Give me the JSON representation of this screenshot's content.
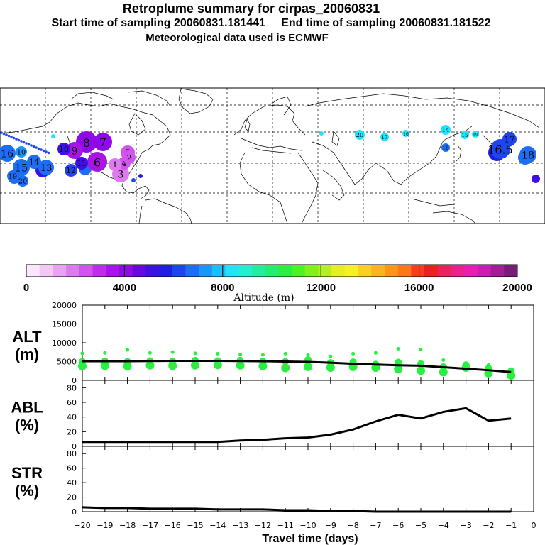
{
  "title": {
    "main": "Retroplume summary for cirpas_20060831",
    "line2": "Start time of sampling 20060831.181441     End time of sampling 20060831.181522",
    "line3": "Meteorological data used is ECMWF"
  },
  "colorbar": {
    "label": "Altitude (m)",
    "ticks": [
      "0",
      "4000",
      "8000",
      "12000",
      "16000",
      "20000"
    ],
    "colors": [
      "#fbe6fb",
      "#f3c8f6",
      "#e9a3f3",
      "#dd7cef",
      "#cf55ec",
      "#bd2ee9",
      "#a814e6",
      "#8f0ae6",
      "#6a06e6",
      "#3d10e8",
      "#1e1ee8",
      "#1e46f0",
      "#1e6ef5",
      "#1e96f8",
      "#1ebefa",
      "#1ee6fa",
      "#1ef0d2",
      "#1ef0a0",
      "#1ef070",
      "#28f040",
      "#50f028",
      "#80f01e",
      "#b4f01e",
      "#e6f01e",
      "#faf01e",
      "#fad21e",
      "#fab41e",
      "#fa961e",
      "#fa781e",
      "#fa3c1e",
      "#f01e1e",
      "#f01e5a",
      "#f01e8c",
      "#e61eb4",
      "#c81eb4",
      "#a01e96",
      "#781e78"
    ]
  },
  "map": {
    "labels": [
      {
        "text": "8",
        "color": "#8f0ae6"
      },
      {
        "text": "7",
        "color": "#8f0ae6"
      },
      {
        "text": "9",
        "color": "#a814e6"
      },
      {
        "text": "6",
        "color": "#a814e6"
      },
      {
        "text": "5",
        "color": "#cf55ec"
      },
      {
        "text": "3",
        "color": "#dd7cef"
      },
      {
        "text": "4",
        "color": "#cf55ec"
      },
      {
        "text": "1",
        "color": "#dd7cef"
      },
      {
        "text": "2",
        "color": "#cf55ec"
      },
      {
        "text": "11",
        "color": "#3d10e8"
      },
      {
        "text": "12",
        "color": "#1e46f0"
      },
      {
        "text": "10",
        "color": "#3d10e8"
      },
      {
        "text": "13",
        "color": "#1e6ef5"
      },
      {
        "text": "14",
        "color": "#1e6ef5"
      },
      {
        "text": "15",
        "color": "#1e6ef5"
      },
      {
        "text": "16",
        "color": "#1e6ef5"
      },
      {
        "text": "18",
        "color": "#1e6ef5"
      },
      {
        "text": "10",
        "color": "#1e96f8"
      },
      {
        "text": "19",
        "color": "#1e6ef5"
      },
      {
        "text": "20",
        "color": "#1e6ef5"
      },
      {
        "text": "20",
        "color": "#1ee6fa"
      },
      {
        "text": "17",
        "color": "#1ee6fa"
      },
      {
        "text": "16",
        "color": "#1ee6fa"
      },
      {
        "text": "14",
        "color": "#1ee6fa"
      },
      {
        "text": "15",
        "color": "#1ee6fa"
      },
      {
        "text": "18",
        "color": "#1e6ef5"
      },
      {
        "text": "16.5",
        "color": "#1e46f0"
      },
      {
        "text": "17",
        "color": "#1e46f0"
      },
      {
        "text": "18",
        "color": "#1e6ef5"
      },
      {
        "text": "19",
        "color": "#1ee6fa"
      }
    ]
  },
  "chart_data": [
    {
      "type": "scatter",
      "panel": "ALT",
      "ylabel": "ALT\n(m)",
      "ylabel_line1": "ALT",
      "ylabel_line2": "(m)",
      "ylim": [
        0,
        20000
      ],
      "yticks": [
        "0",
        "5000",
        "10000",
        "15000",
        "20000"
      ],
      "xlim": [
        -20,
        0
      ],
      "x": [
        -20,
        -19,
        -18,
        -17,
        -16,
        -15,
        -14,
        -13,
        -12,
        -11,
        -10,
        -9,
        -8,
        -7,
        -6,
        -5,
        -4,
        -3,
        -2,
        -1
      ],
      "mean_altitude": [
        5100,
        5100,
        5100,
        5150,
        5200,
        5200,
        5200,
        5150,
        5100,
        5000,
        4900,
        4700,
        4400,
        4200,
        4000,
        3900,
        3500,
        3100,
        2700,
        2200
      ],
      "dots_altitude": [
        [
          7200,
          5000,
          3800
        ],
        [
          7300,
          5100,
          3900
        ],
        [
          8100,
          5000,
          3800
        ],
        [
          7300,
          5200,
          4000
        ],
        [
          7500,
          5100,
          3900
        ],
        [
          7200,
          5300,
          4000
        ],
        [
          7100,
          5200,
          4100
        ],
        [
          6900,
          5300,
          4000
        ],
        [
          6800,
          5100,
          3800
        ],
        [
          7100,
          5000,
          3300
        ],
        [
          6800,
          5500,
          3600
        ],
        [
          6400,
          4700,
          3400
        ],
        [
          7100,
          4900,
          3600
        ],
        [
          7300,
          4300,
          3400
        ],
        [
          8400,
          4800,
          3000
        ],
        [
          8200,
          4400,
          2600
        ],
        [
          5400,
          3600,
          2200
        ],
        [
          4600,
          4100,
          3400
        ],
        [
          4100,
          3200,
          1900
        ],
        [
          2900,
          2500,
          1300
        ]
      ],
      "dot_color": "#28f040"
    },
    {
      "type": "line",
      "panel": "ABL",
      "ylabel_line1": "ABL",
      "ylabel_line2": "(%)",
      "ylim": [
        0,
        90
      ],
      "yticks": [
        "0",
        "20",
        "40",
        "60",
        "80"
      ],
      "x": [
        -20,
        -19,
        -18,
        -17,
        -16,
        -15,
        -14,
        -13,
        -12,
        -11,
        -10,
        -9,
        -8,
        -7,
        -6,
        -5,
        -4,
        -3,
        -2,
        -1
      ],
      "values": [
        6,
        6,
        6,
        6,
        6,
        6,
        6,
        8,
        9,
        11,
        12,
        16,
        23,
        34,
        43,
        38,
        47,
        52,
        35,
        38
      ]
    },
    {
      "type": "line",
      "panel": "STR",
      "ylabel_line1": "STR",
      "ylabel_line2": "(%)",
      "ylim": [
        0,
        90
      ],
      "yticks": [
        "0",
        "20",
        "40",
        "60",
        "80"
      ],
      "x": [
        -20,
        -19,
        -18,
        -17,
        -16,
        -15,
        -14,
        -13,
        -12,
        -11,
        -10,
        -9,
        -8,
        -7,
        -6,
        -5,
        -4,
        -3,
        -2,
        -1
      ],
      "values": [
        6,
        5,
        5,
        4,
        4,
        4,
        3,
        3,
        3,
        2,
        2,
        1,
        1,
        0,
        0,
        0,
        0,
        0,
        0,
        0
      ],
      "xlabel": "Travel time (days)",
      "xticks": [
        "−20",
        "−19",
        "−18",
        "−17",
        "−16",
        "−15",
        "−14",
        "−13",
        "−12",
        "−11",
        "−10",
        "−9",
        "−8",
        "−7",
        "−6",
        "−5",
        "−4",
        "−3",
        "−2",
        "−1",
        "0"
      ]
    }
  ]
}
